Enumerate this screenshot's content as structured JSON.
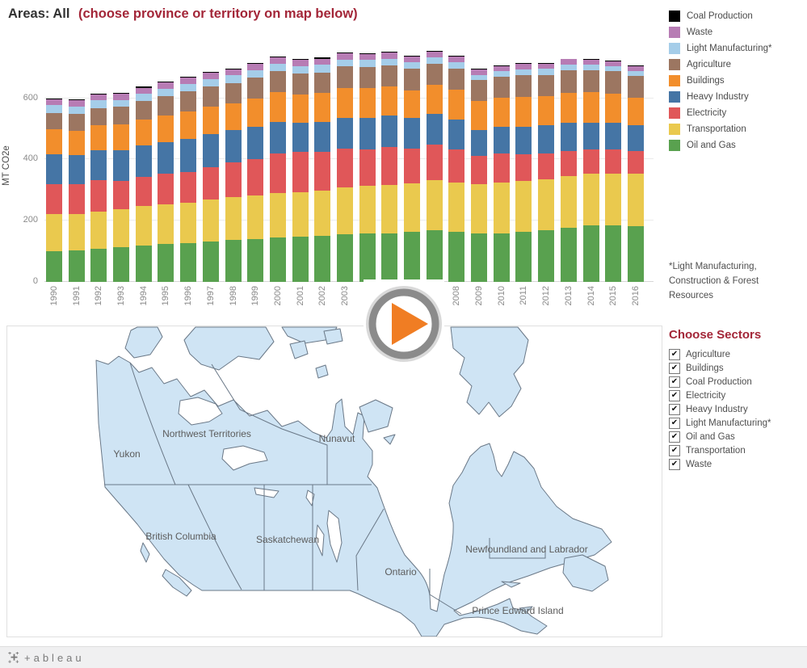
{
  "title": {
    "prefix": "Areas: All",
    "suffix": "(choose province or territory on map below)"
  },
  "colors": {
    "accent_red": "#a32638",
    "coal": "#000000",
    "waste": "#b77cb4",
    "light_manufacturing": "#a5cde9",
    "agriculture": "#9c7661",
    "buildings": "#f28e2c",
    "heavy_industry": "#4575a5",
    "electricity": "#e05759",
    "transportation": "#eac94e",
    "oil_and_gas": "#59a14f",
    "map_land": "#cfe4f4",
    "map_border": "#6a7887",
    "play_triangle": "#f07d23",
    "play_ring": "#8b8b8b"
  },
  "legend": {
    "items": [
      {
        "label": "Coal Production",
        "color": "#000000"
      },
      {
        "label": "Waste",
        "color": "#b77cb4"
      },
      {
        "label": "Light Manufacturing*",
        "color": "#a5cde9"
      },
      {
        "label": "Agriculture",
        "color": "#9c7661"
      },
      {
        "label": "Buildings",
        "color": "#f28e2c"
      },
      {
        "label": "Heavy Industry",
        "color": "#4575a5"
      },
      {
        "label": "Electricity",
        "color": "#e05759"
      },
      {
        "label": "Transportation",
        "color": "#eac94e"
      },
      {
        "label": "Oil and Gas",
        "color": "#59a14f"
      }
    ]
  },
  "chart_data": {
    "type": "bar",
    "subtype": "stacked",
    "title": "",
    "xlabel": "",
    "ylabel": "MT CO2e",
    "yticks": [
      0,
      200,
      400,
      600
    ],
    "ylim": [
      0,
      760
    ],
    "grid": "horizontal",
    "legend_position": "top-right",
    "years": [
      1990,
      1991,
      1992,
      1993,
      1994,
      1995,
      1996,
      1997,
      1998,
      1999,
      2000,
      2001,
      2002,
      2003,
      2004,
      2005,
      2006,
      2007,
      2008,
      2009,
      2010,
      2011,
      2012,
      2013,
      2014,
      2015,
      2016
    ],
    "stack_order_bottom_to_top": [
      "Oil and Gas",
      "Transportation",
      "Electricity",
      "Heavy Industry",
      "Buildings",
      "Agriculture",
      "Light Manufacturing*",
      "Waste",
      "Coal Production"
    ],
    "series": [
      {
        "name": "Oil and Gas",
        "color": "#59a14f",
        "values": [
          101,
          103,
          109,
          113,
          119,
          124,
          128,
          133,
          136,
          139,
          146,
          148,
          150,
          156,
          158,
          158,
          163,
          168,
          163,
          158,
          159,
          163,
          169,
          176,
          185,
          184,
          183
        ]
      },
      {
        "name": "Transportation",
        "color": "#eac94e",
        "values": [
          122,
          119,
          122,
          124,
          128,
          130,
          132,
          136,
          140,
          144,
          145,
          146,
          149,
          153,
          157,
          159,
          160,
          165,
          163,
          161,
          166,
          166,
          167,
          170,
          169,
          170,
          171
        ]
      },
      {
        "name": "Electricity",
        "color": "#e05759",
        "values": [
          96,
          97,
          103,
          94,
          96,
          99,
          99,
          107,
          116,
          118,
          129,
          130,
          125,
          127,
          118,
          125,
          114,
          116,
          108,
          94,
          96,
          89,
          84,
          83,
          78,
          79,
          74
        ]
      },
      {
        "name": "Heavy Industry",
        "color": "#4575a5",
        "values": [
          99,
          96,
          97,
          99,
          102,
          105,
          107,
          107,
          104,
          106,
          104,
          97,
          99,
          100,
          103,
          101,
          99,
          100,
          97,
          84,
          87,
          90,
          91,
          90,
          89,
          87,
          85
        ]
      },
      {
        "name": "Buildings",
        "color": "#f28e2c",
        "values": [
          80,
          79,
          82,
          84,
          85,
          87,
          92,
          90,
          87,
          92,
          96,
          92,
          94,
          99,
          97,
          95,
          91,
          94,
          97,
          94,
          93,
          98,
          95,
          100,
          99,
          96,
          88
        ]
      },
      {
        "name": "Agriculture",
        "color": "#9c7661",
        "values": [
          54,
          55,
          56,
          58,
          61,
          63,
          65,
          66,
          67,
          68,
          68,
          68,
          68,
          69,
          70,
          70,
          70,
          70,
          70,
          69,
          69,
          70,
          71,
          72,
          71,
          72,
          72
        ]
      },
      {
        "name": "Light Manufacturing*",
        "color": "#a5cde9",
        "values": [
          26,
          25,
          24,
          23,
          25,
          24,
          25,
          25,
          25,
          26,
          26,
          24,
          25,
          22,
          23,
          22,
          21,
          21,
          20,
          17,
          18,
          19,
          19,
          19,
          18,
          17,
          17
        ]
      },
      {
        "name": "Waste",
        "color": "#b77cb4",
        "values": [
          19,
          19,
          19,
          19,
          19,
          20,
          20,
          20,
          20,
          20,
          20,
          20,
          20,
          20,
          19,
          19,
          19,
          19,
          19,
          18,
          18,
          18,
          18,
          18,
          17,
          17,
          15
        ]
      },
      {
        "name": "Coal Production",
        "color": "#000000",
        "values": [
          3,
          3,
          3,
          3,
          3,
          3,
          3,
          3,
          3,
          3,
          3,
          3,
          3,
          3,
          3,
          3,
          3,
          3,
          3,
          3,
          3,
          3,
          2,
          2,
          2,
          2,
          2
        ]
      }
    ]
  },
  "footnote": {
    "text": "*Light Manufacturing, Construction & Forest Resources"
  },
  "play_button": {
    "icon": "play"
  },
  "map": {
    "labels": [
      {
        "name": "Yukon"
      },
      {
        "name": "Northwest Territories"
      },
      {
        "name": "Nunavut"
      },
      {
        "name": "British Columbia"
      },
      {
        "name": "Saskatchewan"
      },
      {
        "name": "Ontario"
      },
      {
        "name": "Newfoundland and Labrador"
      },
      {
        "name": "Prince Edward Island"
      }
    ]
  },
  "sectors": {
    "heading": "Choose Sectors",
    "checkmark": "✔",
    "options": [
      {
        "label": "Agriculture",
        "checked": true
      },
      {
        "label": "Buildings",
        "checked": true
      },
      {
        "label": "Coal Production",
        "checked": true
      },
      {
        "label": "Electricity",
        "checked": true
      },
      {
        "label": "Heavy Industry",
        "checked": true
      },
      {
        "label": "Light Manufacturing*",
        "checked": true
      },
      {
        "label": "Oil and Gas",
        "checked": true
      },
      {
        "label": "Transportation",
        "checked": true
      },
      {
        "label": "Waste",
        "checked": true
      }
    ]
  },
  "footer": {
    "logo_text": "+ableau"
  }
}
